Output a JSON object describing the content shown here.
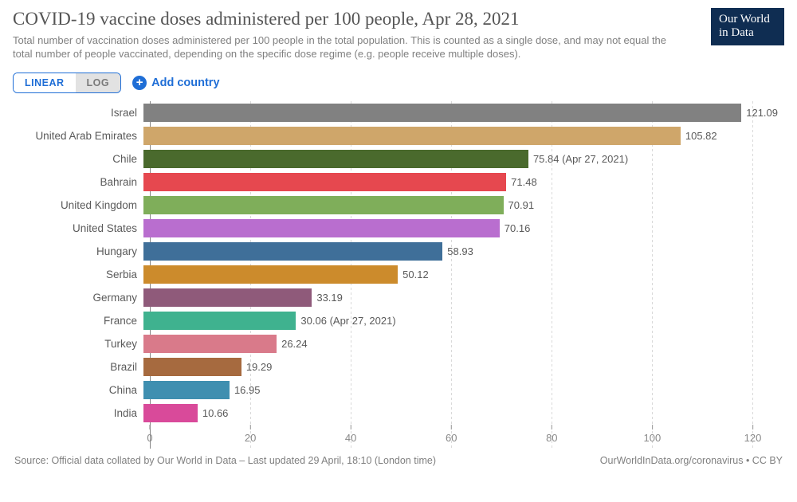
{
  "header": {
    "title": "COVID-19 vaccine doses administered per 100 people, Apr 28, 2021",
    "subtitle": "Total number of vaccination doses administered per 100 people in the total population. This is counted as a single dose, and may not equal the total number of people vaccinated, depending on the specific dose regime (e.g. people receive multiple doses).",
    "logo_line1": "Our World",
    "logo_line2": "in Data"
  },
  "controls": {
    "linear_label": "LINEAR",
    "log_label": "LOG",
    "add_country_label": "Add country"
  },
  "chart": {
    "type": "bar",
    "x_max": 125,
    "ticks": [
      0,
      20,
      40,
      60,
      80,
      100,
      120
    ],
    "gridline_color": "#d9d9d9",
    "gridline_dash": "1,3",
    "axis_line_color": "#888888",
    "bars": [
      {
        "label": "Israel",
        "value": 121.09,
        "value_label": "121.09",
        "color": "#818181"
      },
      {
        "label": "United Arab Emirates",
        "value": 105.82,
        "value_label": "105.82",
        "color": "#cfa66a"
      },
      {
        "label": "Chile",
        "value": 75.84,
        "value_label": "75.84 (Apr 27, 2021)",
        "color": "#4a6a2d"
      },
      {
        "label": "Bahrain",
        "value": 71.48,
        "value_label": "71.48",
        "color": "#e6484f"
      },
      {
        "label": "United Kingdom",
        "value": 70.91,
        "value_label": "70.91",
        "color": "#7fae5a"
      },
      {
        "label": "United States",
        "value": 70.16,
        "value_label": "70.16",
        "color": "#b96ecf"
      },
      {
        "label": "Hungary",
        "value": 58.93,
        "value_label": "58.93",
        "color": "#3f6f99"
      },
      {
        "label": "Serbia",
        "value": 50.12,
        "value_label": "50.12",
        "color": "#cc8b2c"
      },
      {
        "label": "Germany",
        "value": 33.19,
        "value_label": "33.19",
        "color": "#8f5a7a"
      },
      {
        "label": "France",
        "value": 30.06,
        "value_label": "30.06 (Apr 27, 2021)",
        "color": "#3fb28f"
      },
      {
        "label": "Turkey",
        "value": 26.24,
        "value_label": "26.24",
        "color": "#d97a8a"
      },
      {
        "label": "Brazil",
        "value": 19.29,
        "value_label": "19.29",
        "color": "#a66a3f"
      },
      {
        "label": "China",
        "value": 16.95,
        "value_label": "16.95",
        "color": "#3f8fb0"
      },
      {
        "label": "India",
        "value": 10.66,
        "value_label": "10.66",
        "color": "#d94a9a"
      }
    ]
  },
  "footer": {
    "source": "Source: Official data collated by Our World in Data – Last updated 29 April, 18:10 (London time)",
    "attribution": "OurWorldInData.org/coronavirus • CC BY"
  }
}
